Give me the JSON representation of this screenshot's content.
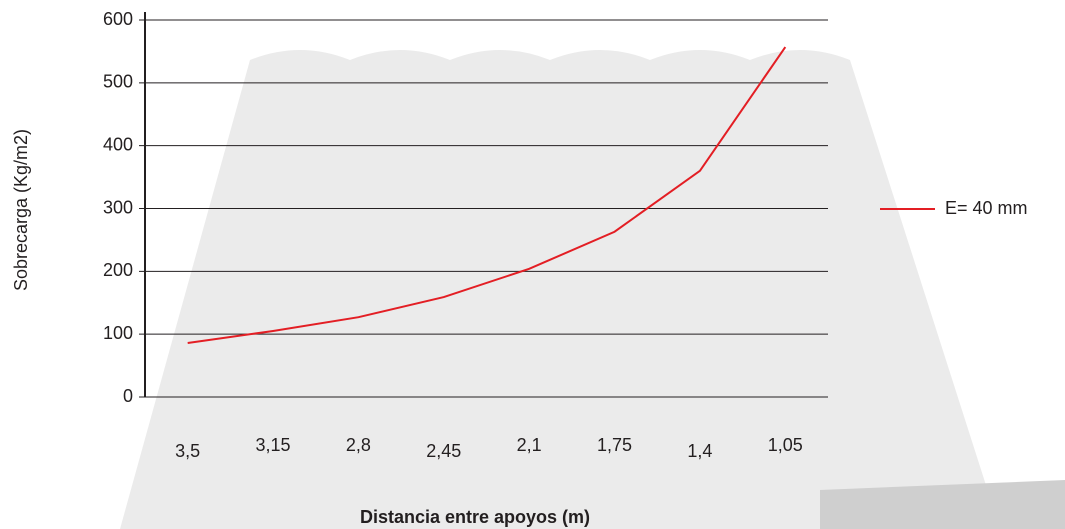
{
  "chart_data": {
    "type": "line",
    "x_label": "Distancia entre apoyos (m)",
    "y_label": "Sobrecarga  (Kg/m2)",
    "categories": [
      "3,5",
      "3,15",
      "2,8",
      "2,45",
      "2,1",
      "1,75",
      "1,4",
      "1,05"
    ],
    "series": [
      {
        "name": "E= 40 mm",
        "color": "#e31e24",
        "values": [
          86,
          105,
          127,
          159,
          204,
          263,
          360,
          557
        ]
      }
    ],
    "ylim": [
      0,
      600
    ],
    "yticks": [
      0,
      100,
      200,
      300,
      400,
      500,
      600
    ],
    "grid": true,
    "legend": "right"
  }
}
